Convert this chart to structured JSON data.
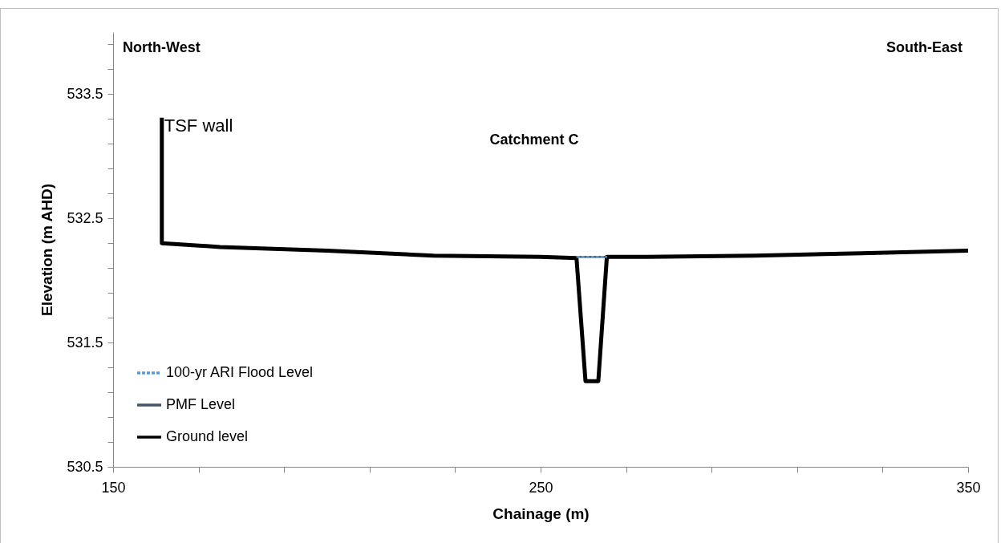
{
  "chart_data": {
    "type": "line",
    "xlabel": "Chainage (m)",
    "ylabel": "Elevation (m AHD)",
    "annotations": [
      "North-West",
      "South-East",
      "Catchment C",
      {
        "text": "TSF wall",
        "x": 161.4,
        "y": 533.31
      }
    ],
    "xlim": [
      150,
      350
    ],
    "ylim": [
      530.5,
      534
    ],
    "xticks": [
      150,
      {
        "value": 170,
        "label": null
      },
      {
        "value": 190,
        "label": null
      },
      {
        "value": 210,
        "label": null
      },
      {
        "value": 230,
        "label": null
      },
      250,
      {
        "value": 270,
        "label": null
      },
      {
        "value": 290,
        "label": null
      },
      {
        "value": 310,
        "label": null
      },
      {
        "value": 330,
        "label": null
      },
      350
    ],
    "yticks": [
      530.5,
      {
        "value": 530.7,
        "label": null
      },
      {
        "value": 530.9,
        "label": null
      },
      {
        "value": 531.1,
        "label": null
      },
      {
        "value": 531.3,
        "label": null
      },
      531.5,
      {
        "value": 531.7,
        "label": null
      },
      {
        "value": 531.9,
        "label": null
      },
      {
        "value": 532.1,
        "label": null
      },
      {
        "value": 532.3,
        "label": null
      },
      532.5,
      {
        "value": 532.7,
        "label": null
      },
      {
        "value": 532.9,
        "label": null
      },
      {
        "value": 533.1,
        "label": null
      },
      {
        "value": 533.3,
        "label": null
      },
      533.5,
      {
        "value": 533.7,
        "label": null
      },
      {
        "value": 533.9,
        "label": null
      }
    ],
    "grid": false,
    "legend": "bottom left",
    "marker": "none",
    "series": [
      {
        "name": "100-yr ARI Flood Level",
        "color": "#5b9bd5",
        "line_style": "dashed",
        "x": [
          258.4,
          265.5
        ],
        "values": [
          532.19,
          532.19
        ]
      },
      {
        "name": "PMF Level",
        "color": "#44546a",
        "line_style": "solid",
        "x": [
          258.4,
          265.5
        ],
        "values": [
          532.19,
          532.19
        ]
      },
      {
        "name": "Ground level",
        "color": "#000000",
        "line_style": "solid",
        "x": [
          161.4,
          161.4,
          175,
          200,
          225,
          250,
          258.4,
          260.5,
          263.5,
          265.5,
          275,
          300,
          325,
          350
        ],
        "values": [
          533.31,
          532.3,
          532.27,
          532.24,
          532.2,
          532.19,
          532.18,
          531.19,
          531.19,
          532.19,
          532.19,
          532.2,
          532.22,
          532.24
        ]
      }
    ]
  }
}
